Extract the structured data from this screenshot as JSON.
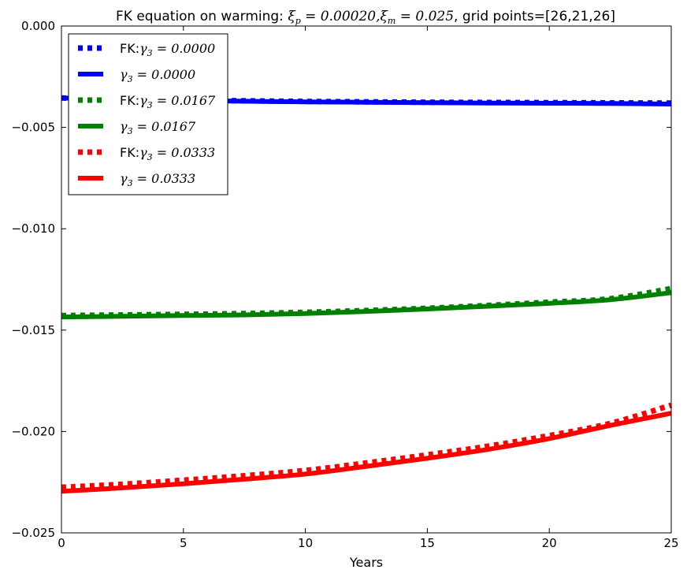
{
  "chart_data": {
    "type": "line",
    "title": {
      "prefix": "FK equation on warming: ",
      "xi_p": "ξ",
      "xi_p_sub": "p",
      "xi_p_val": " = 0.00020,",
      "xi_m": "ξ",
      "xi_m_sub": "m",
      "xi_m_val": " = 0.025",
      "suffix": ", grid points=[26,21,26]"
    },
    "xlabel": "Years",
    "ylabel": "",
    "xlim": [
      0,
      25
    ],
    "ylim": [
      -0.025,
      0.0
    ],
    "xticks": [
      0,
      5,
      10,
      15,
      20,
      25
    ],
    "yticks": [
      0.0,
      -0.005,
      -0.01,
      -0.015,
      -0.02,
      -0.025
    ],
    "ytick_labels": [
      "0.000",
      "−0.005",
      "−0.010",
      "−0.015",
      "−0.020",
      "−0.025"
    ],
    "xtick_labels": [
      "0",
      "5",
      "10",
      "15",
      "20",
      "25"
    ],
    "grid": false,
    "legend_position": "top-left",
    "x": [
      0,
      2.5,
      5,
      7.5,
      10,
      12.5,
      15,
      17.5,
      20,
      22.5,
      25
    ],
    "series": [
      {
        "name_prefix": "FK:",
        "gamma": "γ",
        "gamma_sub": "3",
        "gamma_val": " = 0.0000",
        "color": "#0000ff",
        "style": "dotted",
        "values": [
          -0.00355,
          -0.00362,
          -0.00366,
          -0.00369,
          -0.00372,
          -0.00374,
          -0.00376,
          -0.00377,
          -0.00378,
          -0.00379,
          -0.0038
        ]
      },
      {
        "name_prefix": "",
        "gamma": "γ",
        "gamma_sub": "3",
        "gamma_val": " = 0.0000",
        "color": "#0000ff",
        "style": "solid",
        "values": [
          -0.00355,
          -0.00363,
          -0.00368,
          -0.00371,
          -0.00374,
          -0.00376,
          -0.00378,
          -0.0038,
          -0.00381,
          -0.00382,
          -0.00385
        ]
      },
      {
        "name_prefix": "FK:",
        "gamma": "γ",
        "gamma_sub": "3",
        "gamma_val": " = 0.0167",
        "color": "#008000",
        "style": "dotted",
        "values": [
          -0.01428,
          -0.01425,
          -0.01422,
          -0.01418,
          -0.01412,
          -0.01403,
          -0.01392,
          -0.01378,
          -0.01362,
          -0.01345,
          -0.01295
        ]
      },
      {
        "name_prefix": "",
        "gamma": "γ",
        "gamma_sub": "3",
        "gamma_val": " = 0.0167",
        "color": "#008000",
        "style": "solid",
        "values": [
          -0.01435,
          -0.01432,
          -0.01428,
          -0.01425,
          -0.01418,
          -0.01408,
          -0.01396,
          -0.01382,
          -0.01368,
          -0.0135,
          -0.01315
        ]
      },
      {
        "name_prefix": "FK:",
        "gamma": "γ",
        "gamma_sub": "3",
        "gamma_val": " = 0.0333",
        "color": "#ff0000",
        "style": "dotted",
        "values": [
          -0.02275,
          -0.0226,
          -0.0224,
          -0.02218,
          -0.02192,
          -0.02155,
          -0.02115,
          -0.02072,
          -0.0202,
          -0.0196,
          -0.0187
        ]
      },
      {
        "name_prefix": "",
        "gamma": "γ",
        "gamma_sub": "3",
        "gamma_val": " = 0.0333",
        "color": "#ff0000",
        "style": "solid",
        "values": [
          -0.02295,
          -0.02278,
          -0.02258,
          -0.02235,
          -0.0221,
          -0.02172,
          -0.02132,
          -0.02088,
          -0.02035,
          -0.0197,
          -0.0191
        ]
      }
    ]
  }
}
